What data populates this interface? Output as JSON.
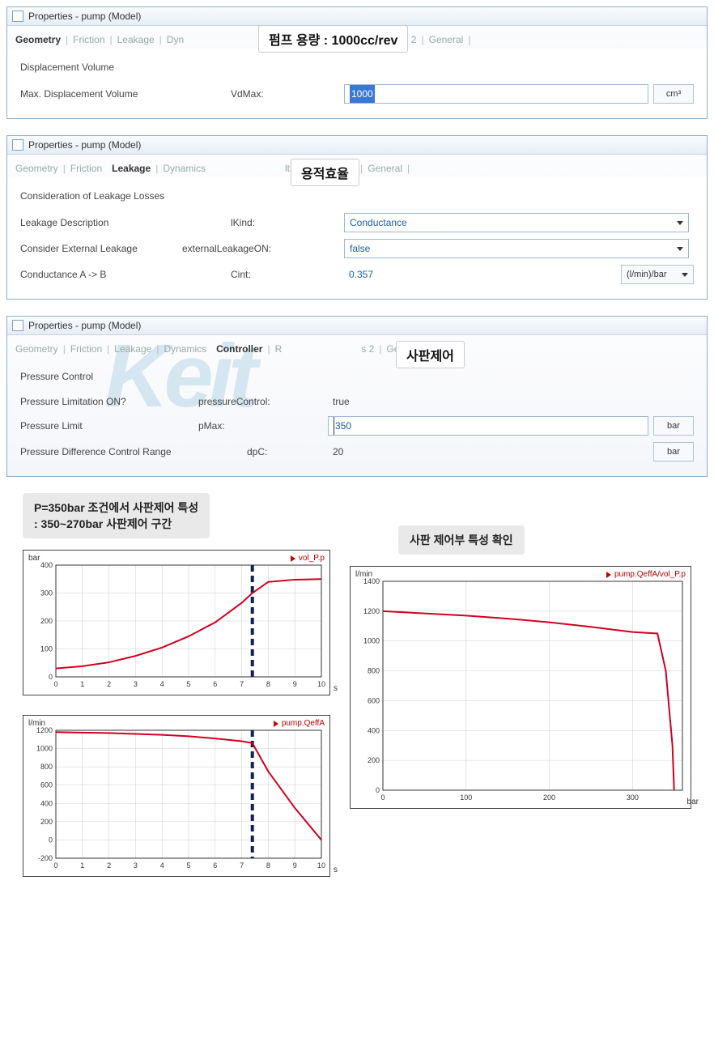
{
  "overlay1": "펌프 용량 : 1000cc/rev",
  "overlay2": "용적효율",
  "overlay3": "사판제어",
  "panel1": {
    "title": "Properties - pump (Model)",
    "tabs": [
      "Geometry",
      "Friction",
      "Leakage",
      "Dyn",
      "ts 2",
      "General"
    ],
    "active_tab": 0,
    "section": "Displacement Volume",
    "row1": {
      "label": "Max. Displacement Volume",
      "param": "VdMax:",
      "value": "1000",
      "unit": "cm³"
    }
  },
  "panel2": {
    "title": "Properties - pump (Model)",
    "tabs": [
      "Geometry",
      "Friction",
      "Leakage",
      "Dynamics",
      "lts 1",
      "Results 2",
      "General"
    ],
    "active_tab": 2,
    "section": "Consideration of Leakage Losses",
    "row1": {
      "label": "Leakage Description",
      "param": "lKind:",
      "value": "Conductance",
      "highlighted": true
    },
    "row2": {
      "label": "Consider External Leakage",
      "param": "externalLeakageON:",
      "value": "false"
    },
    "row3": {
      "label": "Conductance A -> B",
      "param": "Cint:",
      "value": "0.357",
      "unit": "(l/min)/bar"
    }
  },
  "panel3": {
    "title": "Properties - pump (Model)",
    "tabs": [
      "Geometry",
      "Friction",
      "Leakage",
      "Dynamics",
      "Controller",
      "R",
      "s 2",
      "General"
    ],
    "active_tab": 4,
    "section": "Pressure Control",
    "row1": {
      "label": "Pressure Limitation ON?",
      "param": "pressureControl:",
      "value": "true"
    },
    "row2": {
      "label": "Pressure Limit",
      "param": "pMax:",
      "value": "350",
      "unit": "bar"
    },
    "row3": {
      "label": "Pressure Difference Control Range",
      "param": "dpC:",
      "value": "20",
      "unit": "bar"
    },
    "watermark": "Keit"
  },
  "charts": {
    "caption_left": "P=350bar 조건에서 사판제어 특성\n: 350~270bar 사판제어 구간",
    "caption_right": "사판 제어부 특성 확인",
    "chart1": {
      "yunit": "bar",
      "xunit": "s",
      "legend": "vol_P.p",
      "xlim": [
        0,
        10
      ],
      "ylim": [
        0,
        400
      ],
      "xticks": [
        0,
        1,
        2,
        3,
        4,
        5,
        6,
        7,
        8,
        9,
        10
      ],
      "yticks": [
        0,
        100,
        200,
        300,
        400
      ],
      "vline_x": 7.4,
      "line_color": "#d00020",
      "data": [
        [
          0,
          30
        ],
        [
          1,
          38
        ],
        [
          2,
          52
        ],
        [
          3,
          75
        ],
        [
          4,
          105
        ],
        [
          5,
          145
        ],
        [
          6,
          195
        ],
        [
          7,
          265
        ],
        [
          7.4,
          300
        ],
        [
          8,
          340
        ],
        [
          9,
          348
        ],
        [
          10,
          350
        ]
      ]
    },
    "chart2": {
      "yunit": "l/min",
      "xunit": "s",
      "legend": "pump.QeffA",
      "xlim": [
        0,
        10
      ],
      "ylim": [
        -200,
        1200
      ],
      "xticks": [
        0,
        1,
        2,
        3,
        4,
        5,
        6,
        7,
        8,
        9,
        10
      ],
      "yticks": [
        -200,
        0,
        200,
        400,
        600,
        800,
        1000,
        1200
      ],
      "vline_x": 7.4,
      "line_color": "#d00020",
      "data": [
        [
          0,
          1180
        ],
        [
          1,
          1175
        ],
        [
          2,
          1170
        ],
        [
          3,
          1160
        ],
        [
          4,
          1150
        ],
        [
          5,
          1135
        ],
        [
          6,
          1110
        ],
        [
          7,
          1080
        ],
        [
          7.4,
          1060
        ],
        [
          8,
          750
        ],
        [
          9,
          350
        ],
        [
          10,
          0
        ]
      ]
    },
    "chart3": {
      "yunit": "l/min",
      "xunit": "bar",
      "legend": "pump.QeffA/vol_P.p",
      "xlim": [
        0,
        360
      ],
      "ylim": [
        0,
        1400
      ],
      "xticks": [
        0,
        100,
        200,
        300
      ],
      "yticks": [
        0,
        200,
        400,
        600,
        800,
        1000,
        1200,
        1400
      ],
      "line_color": "#d00020",
      "data": [
        [
          0,
          1200
        ],
        [
          50,
          1185
        ],
        [
          100,
          1170
        ],
        [
          150,
          1150
        ],
        [
          200,
          1125
        ],
        [
          250,
          1095
        ],
        [
          300,
          1060
        ],
        [
          330,
          1050
        ],
        [
          340,
          800
        ],
        [
          348,
          300
        ],
        [
          350,
          0
        ]
      ]
    }
  },
  "colors": {
    "panel_border": "#8caecc",
    "input_border": "#9bb7d6",
    "value_text": "#1a5fb4",
    "chart_line": "#d00020",
    "vline": "#10224f"
  }
}
